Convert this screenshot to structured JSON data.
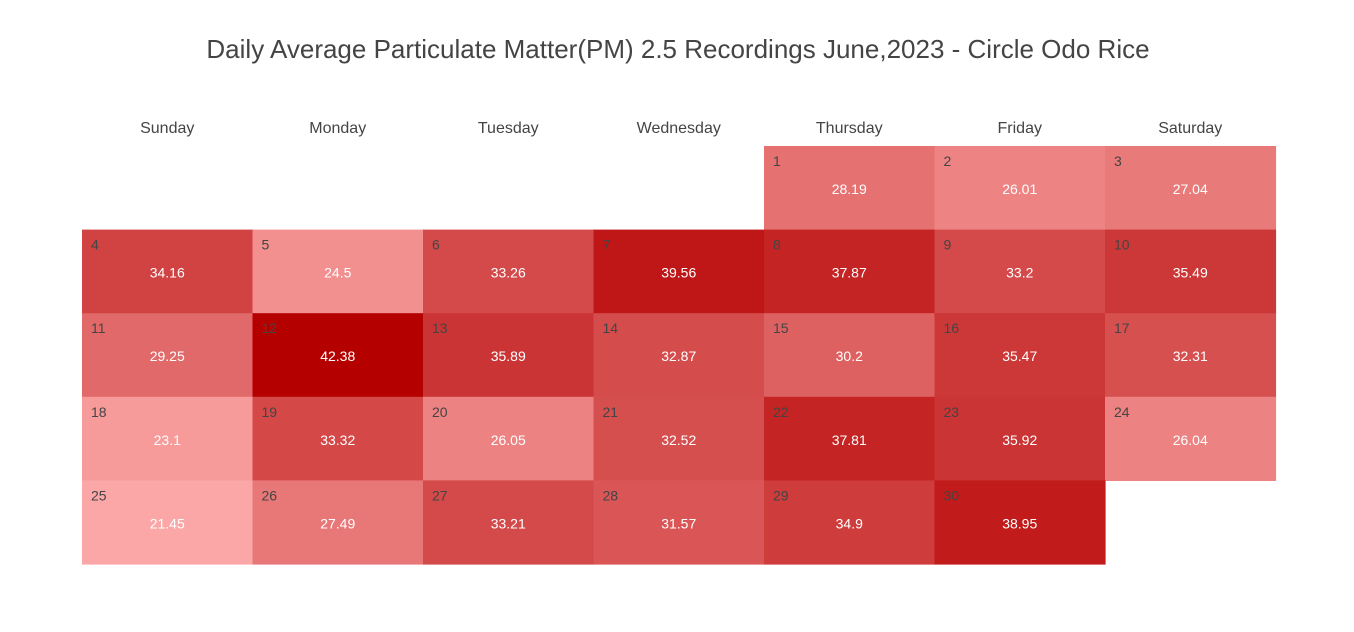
{
  "chart_data": {
    "type": "heatmap",
    "title": "Daily Average Particulate Matter(PM) 2.5 Recordings June,2023 - Circle Odo Rice",
    "weekdays": [
      "Sunday",
      "Monday",
      "Tuesday",
      "Wednesday",
      "Thursday",
      "Friday",
      "Saturday"
    ],
    "first_weekday_index": 4,
    "days": [
      {
        "day": "1",
        "value": "28.19"
      },
      {
        "day": "2",
        "value": "26.01"
      },
      {
        "day": "3",
        "value": "27.04"
      },
      {
        "day": "4",
        "value": "34.16"
      },
      {
        "day": "5",
        "value": "24.5"
      },
      {
        "day": "6",
        "value": "33.26"
      },
      {
        "day": "7",
        "value": "39.56"
      },
      {
        "day": "8",
        "value": "37.87"
      },
      {
        "day": "9",
        "value": "33.2"
      },
      {
        "day": "10",
        "value": "35.49"
      },
      {
        "day": "11",
        "value": "29.25"
      },
      {
        "day": "12",
        "value": "42.38"
      },
      {
        "day": "13",
        "value": "35.89"
      },
      {
        "day": "14",
        "value": "32.87"
      },
      {
        "day": "15",
        "value": "30.2"
      },
      {
        "day": "16",
        "value": "35.47"
      },
      {
        "day": "17",
        "value": "32.31"
      },
      {
        "day": "18",
        "value": "23.1"
      },
      {
        "day": "19",
        "value": "33.32"
      },
      {
        "day": "20",
        "value": "26.05"
      },
      {
        "day": "21",
        "value": "32.52"
      },
      {
        "day": "22",
        "value": "37.81"
      },
      {
        "day": "23",
        "value": "35.92"
      },
      {
        "day": "24",
        "value": "26.04"
      },
      {
        "day": "25",
        "value": "21.45"
      },
      {
        "day": "26",
        "value": "27.49"
      },
      {
        "day": "27",
        "value": "33.21"
      },
      {
        "day": "28",
        "value": "31.57"
      },
      {
        "day": "29",
        "value": "34.9"
      },
      {
        "day": "30",
        "value": "38.95"
      }
    ],
    "color_scale": {
      "low_color": "#fca7a7",
      "high_color": "#b50000"
    },
    "grid": false,
    "legend": "none"
  }
}
